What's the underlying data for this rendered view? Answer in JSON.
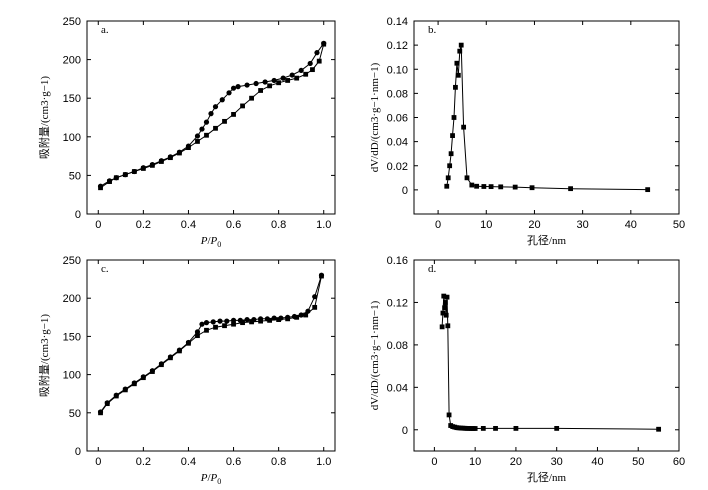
{
  "chart_data": [
    {
      "id": "a",
      "panel_label": "a.",
      "type": "line",
      "xlabel": "P/P0",
      "xlabel_main": "P",
      "xlabel_sep": "/",
      "xlabel_sub": "0",
      "ylabel": "吸附量/(cm3·g−1)",
      "xlim": [
        -0.05,
        1.05
      ],
      "ylim": [
        0,
        250
      ],
      "x_ticks": [
        0,
        0.2,
        0.4,
        0.6,
        0.8,
        1.0
      ],
      "x_tick_labels": [
        "0",
        "0.2",
        "0.4",
        "0.6",
        "0.8",
        "1.0"
      ],
      "y_ticks": [
        0,
        50,
        100,
        150,
        200,
        250
      ],
      "y_tick_labels": [
        "0",
        "50",
        "100",
        "150",
        "200",
        "250"
      ],
      "series": [
        {
          "name": "adsorption",
          "marker": "square",
          "x": [
            0.01,
            0.05,
            0.08,
            0.12,
            0.16,
            0.2,
            0.24,
            0.28,
            0.32,
            0.36,
            0.4,
            0.44,
            0.48,
            0.52,
            0.56,
            0.6,
            0.64,
            0.68,
            0.72,
            0.76,
            0.8,
            0.84,
            0.88,
            0.92,
            0.95,
            0.98,
            1.0
          ],
          "y": [
            34,
            42,
            47,
            51,
            55,
            59,
            63,
            68,
            73,
            79,
            86,
            94,
            102,
            111,
            120,
            129,
            140,
            150,
            160,
            166,
            170,
            173,
            176,
            181,
            187,
            198,
            220
          ]
        },
        {
          "name": "desorption",
          "marker": "circle",
          "x": [
            1.0,
            0.97,
            0.94,
            0.9,
            0.86,
            0.82,
            0.78,
            0.74,
            0.7,
            0.66,
            0.62,
            0.6,
            0.58,
            0.55,
            0.52,
            0.5,
            0.48,
            0.46,
            0.44,
            0.4,
            0.36,
            0.32,
            0.28,
            0.24,
            0.2,
            0.16,
            0.12,
            0.08,
            0.05,
            0.01
          ],
          "y": [
            221,
            209,
            195,
            186,
            180,
            176,
            173,
            171,
            169,
            167,
            165,
            163,
            157,
            148,
            139,
            130,
            119,
            110,
            101,
            88,
            80,
            74,
            69,
            64,
            60,
            55,
            51,
            47,
            43,
            36
          ]
        }
      ]
    },
    {
      "id": "b",
      "panel_label": "b.",
      "type": "line",
      "xlabel": "孔径/nm",
      "ylabel": "dV/dD/(cm3·g−1·nm−1)",
      "xlim": [
        -5,
        50
      ],
      "ylim": [
        -0.02,
        0.14
      ],
      "x_ticks": [
        0,
        10,
        20,
        30,
        40,
        50
      ],
      "x_tick_labels": [
        "0",
        "10",
        "20",
        "30",
        "40",
        "50"
      ],
      "y_ticks": [
        0,
        0.02,
        0.04,
        0.06,
        0.08,
        0.1,
        0.12,
        0.14
      ],
      "y_tick_labels": [
        "0",
        "0.02",
        "0.04",
        "0.06",
        "0.08",
        "0.10",
        "0.12",
        "0.14"
      ],
      "series": [
        {
          "name": "pore size distribution",
          "marker": "square",
          "x": [
            1.8,
            2.1,
            2.4,
            2.7,
            3.0,
            3.3,
            3.6,
            3.9,
            4.2,
            4.5,
            4.8,
            5.3,
            6.0,
            7.0,
            8.0,
            9.5,
            11.0,
            13.0,
            16.0,
            19.5,
            27.5,
            43.5
          ],
          "y": [
            0.003,
            0.01,
            0.02,
            0.03,
            0.045,
            0.06,
            0.085,
            0.105,
            0.095,
            0.115,
            0.12,
            0.052,
            0.01,
            0.004,
            0.003,
            0.0028,
            0.0027,
            0.0025,
            0.0023,
            0.0018,
            0.001,
            0.0002
          ]
        }
      ]
    },
    {
      "id": "c",
      "panel_label": "c.",
      "type": "line",
      "xlabel": "P/P0",
      "xlabel_main": "P",
      "xlabel_sep": "/",
      "xlabel_sub": "0",
      "ylabel": "吸附量/(cm3·g−1)",
      "xlim": [
        -0.05,
        1.05
      ],
      "ylim": [
        0,
        250
      ],
      "x_ticks": [
        0,
        0.2,
        0.4,
        0.6,
        0.8,
        1.0
      ],
      "x_tick_labels": [
        "0",
        "0.2",
        "0.4",
        "0.6",
        "0.8",
        "1.0"
      ],
      "y_ticks": [
        0,
        50,
        100,
        150,
        200,
        250
      ],
      "y_tick_labels": [
        "0",
        "50",
        "100",
        "150",
        "200",
        "250"
      ],
      "series": [
        {
          "name": "adsorption",
          "marker": "square",
          "x": [
            0.01,
            0.04,
            0.08,
            0.12,
            0.16,
            0.2,
            0.24,
            0.28,
            0.32,
            0.36,
            0.4,
            0.44,
            0.48,
            0.52,
            0.56,
            0.6,
            0.64,
            0.68,
            0.72,
            0.76,
            0.8,
            0.84,
            0.88,
            0.92,
            0.96,
            0.99
          ],
          "y": [
            50,
            62,
            72,
            80,
            88,
            96,
            104,
            113,
            122,
            131,
            141,
            151,
            158,
            162,
            164,
            166,
            168,
            169,
            170,
            171,
            172,
            173,
            175,
            178,
            188,
            229
          ]
        },
        {
          "name": "desorption",
          "marker": "circle",
          "x": [
            0.99,
            0.96,
            0.93,
            0.9,
            0.87,
            0.84,
            0.81,
            0.78,
            0.75,
            0.72,
            0.69,
            0.66,
            0.63,
            0.6,
            0.57,
            0.54,
            0.51,
            0.48,
            0.46,
            0.44,
            0.4,
            0.36,
            0.32,
            0.28,
            0.24,
            0.2,
            0.16,
            0.12,
            0.08,
            0.04,
            0.01
          ],
          "y": [
            230,
            202,
            183,
            178,
            176,
            175,
            174,
            174,
            173,
            173,
            172,
            172,
            171,
            171,
            170,
            170,
            169,
            168,
            166,
            156,
            142,
            132,
            123,
            114,
            105,
            97,
            89,
            81,
            73,
            63,
            51
          ]
        }
      ]
    },
    {
      "id": "d",
      "panel_label": "d.",
      "type": "line",
      "xlabel": "孔径/nm",
      "ylabel": "dV/dD/(cm3·g−1·nm−1)",
      "xlim": [
        -5,
        60
      ],
      "ylim": [
        -0.02,
        0.16
      ],
      "x_ticks": [
        0,
        10,
        20,
        30,
        40,
        50,
        60
      ],
      "x_tick_labels": [
        "0",
        "10",
        "20",
        "30",
        "40",
        "50",
        "60"
      ],
      "y_ticks": [
        0,
        0.04,
        0.08,
        0.12,
        0.16
      ],
      "y_tick_labels": [
        "0",
        "0.04",
        "0.08",
        "0.12",
        "0.16"
      ],
      "series": [
        {
          "name": "pore size distribution",
          "marker": "square",
          "x": [
            1.9,
            2.1,
            2.3,
            2.5,
            2.7,
            2.9,
            3.1,
            3.3,
            3.6,
            4.0,
            4.5,
            5.0,
            5.5,
            6.0,
            6.5,
            7.0,
            7.5,
            8.0,
            8.5,
            9.0,
            9.5,
            10.0,
            12.0,
            15.0,
            20.0,
            30.0,
            55.0
          ],
          "y": [
            0.097,
            0.11,
            0.126,
            0.115,
            0.12,
            0.108,
            0.125,
            0.098,
            0.014,
            0.004,
            0.003,
            0.0025,
            0.002,
            0.0018,
            0.0016,
            0.0015,
            0.0014,
            0.0013,
            0.0013,
            0.0012,
            0.0012,
            0.0012,
            0.0013,
            0.0013,
            0.0013,
            0.0013,
            0.0005
          ]
        }
      ]
    }
  ]
}
